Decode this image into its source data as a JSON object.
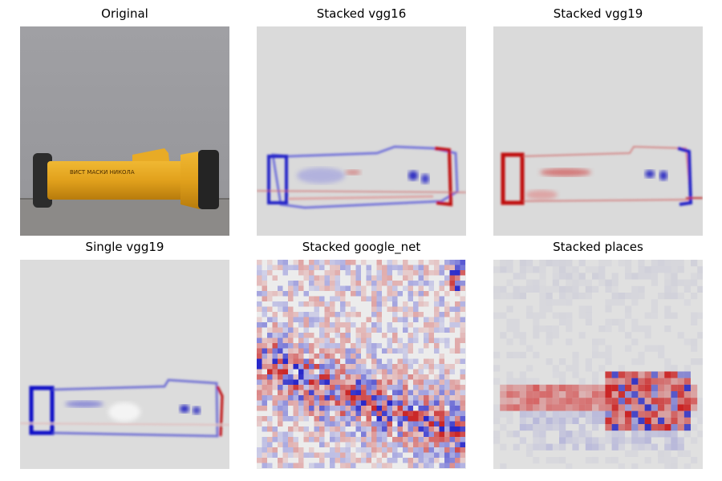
{
  "panels": [
    {
      "title": "Original",
      "content": "photo of a yellow flashlight"
    },
    {
      "title": "Stacked vgg16",
      "content": "saliency heatmap"
    },
    {
      "title": "Stacked vgg19",
      "content": "saliency heatmap"
    },
    {
      "title": "Single vgg19",
      "content": "saliency heatmap"
    },
    {
      "title": "Stacked google_net",
      "content": "noisy saliency heatmap"
    },
    {
      "title": "Stacked places",
      "content": "blocky saliency heatmap"
    }
  ],
  "colors": {
    "background_gray": "#dadada",
    "positive": "#c00000",
    "negative": "#0000c8",
    "flashlight_body": "#e0a21c",
    "wall": "#9c9ca0"
  }
}
